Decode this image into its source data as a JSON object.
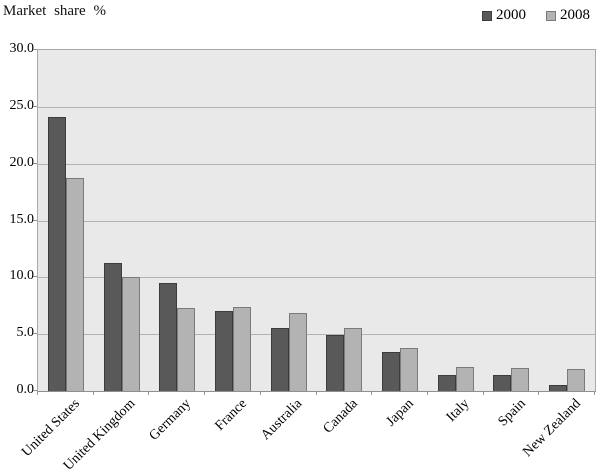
{
  "page": {
    "title": "Market share %"
  },
  "legend": {
    "items": [
      {
        "label": "2000",
        "color": "#595959",
        "border": "#3c3c3c"
      },
      {
        "label": "2008",
        "color": "#b3b3b3",
        "border": "#7a7a7a"
      }
    ]
  },
  "chart_data": {
    "type": "bar",
    "title": "Market share %",
    "ylabel": "Market share %",
    "xlabel": "",
    "categories": [
      "United States",
      "United Kingdom",
      "Germany",
      "France",
      "Australia",
      "Canada",
      "Japan",
      "Italy",
      "Spain",
      "New Zealand"
    ],
    "series": [
      {
        "name": "2000",
        "color": "#595959",
        "border": "#3c3c3c",
        "values": [
          24.1,
          11.3,
          9.5,
          7.0,
          5.5,
          4.9,
          3.4,
          1.4,
          1.4,
          0.5
        ]
      },
      {
        "name": "2008",
        "color": "#b3b3b3",
        "border": "#7a7a7a",
        "values": [
          18.7,
          10.0,
          7.3,
          7.4,
          6.9,
          5.5,
          3.8,
          2.1,
          2.0,
          1.9
        ]
      }
    ],
    "ylim": [
      0,
      30
    ],
    "ytick_step": 5,
    "ytick_labels": [
      "0.0",
      "5.0",
      "10.0",
      "15.0",
      "20.0",
      "25.0",
      "30.0"
    ],
    "grid": true,
    "legend_position": "top-right",
    "plot_background": "#e9e9e9",
    "gridline_color": "#b3b3b3"
  }
}
